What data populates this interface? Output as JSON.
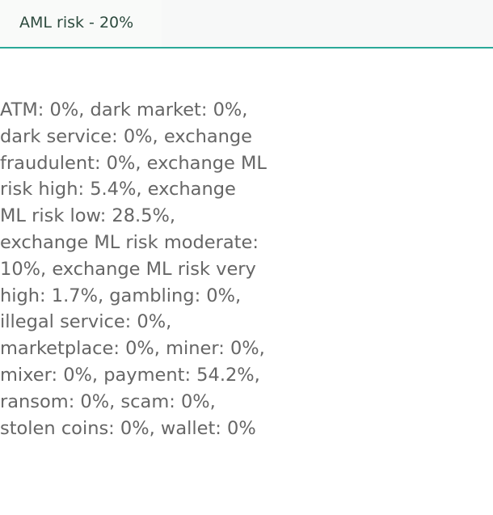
{
  "header": {
    "tab_label": "AML risk - 20%"
  },
  "details": {
    "text": "ATM: 0%, dark market: 0%, dark service: 0%, exchange fraudulent: 0%, exchange ML risk high: 5.4%, exchange ML risk low: 28.5%, exchange ML risk moderate: 10%, exchange ML risk very high: 1.7%, gambling: 0%, illegal service: 0%, marketplace: 0%, miner: 0%, mixer: 0%, payment: 54.2%, ransom: 0%, scam: 0%, stolen coins: 0%, wallet: 0%"
  },
  "colors": {
    "accent": "#2aa898",
    "tab_text": "#2d4a3e",
    "body_text": "#666666"
  }
}
